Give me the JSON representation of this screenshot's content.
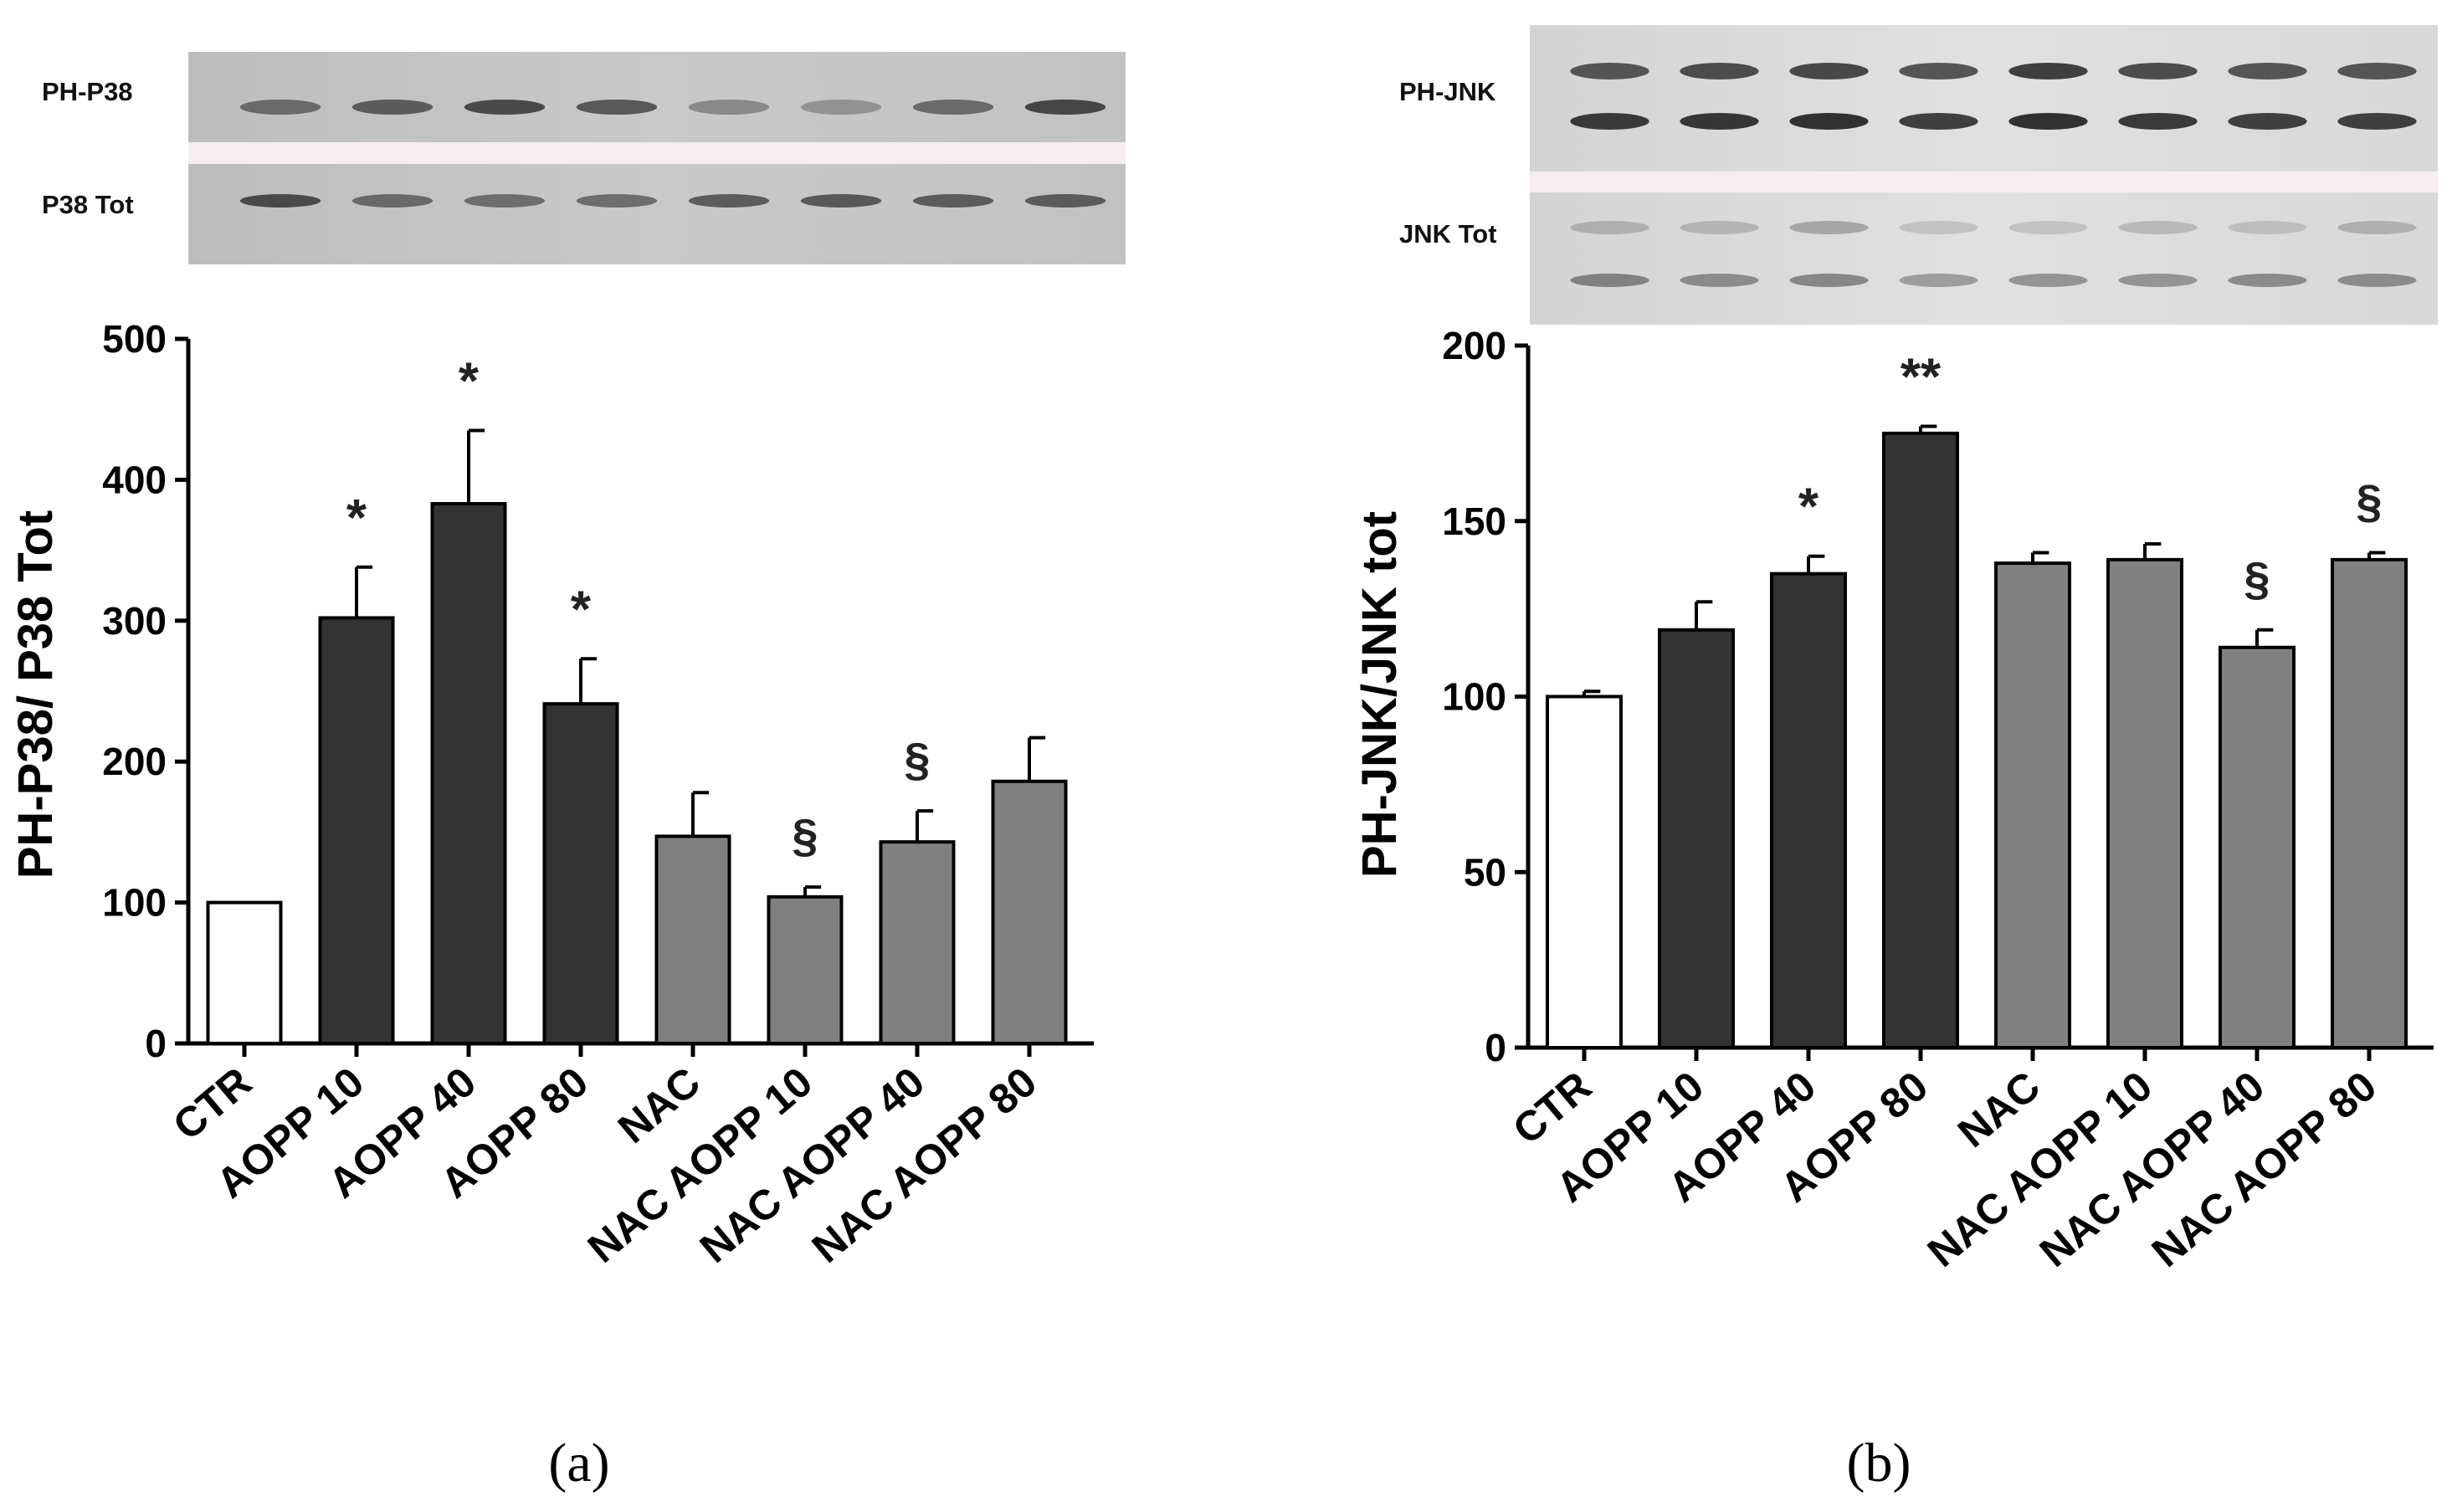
{
  "figure": {
    "panel_a_label": "(a)",
    "panel_b_label": "(b)",
    "blot_a": {
      "top_label": "PH-P38",
      "bottom_label": "P38 Tot"
    },
    "blot_b": {
      "top_label": "PH-JNK",
      "bottom_label": "JNK Tot"
    }
  },
  "colors": {
    "ctr": "#ffffff",
    "aopp": "#333333",
    "nac": "#808080",
    "outline": "#000000"
  },
  "chart_data": [
    {
      "id": "a",
      "type": "bar",
      "ylabel": "PH-P38/ P38 Tot",
      "xlabel": "",
      "ylim": [
        0,
        500
      ],
      "yticks": [
        0,
        100,
        200,
        300,
        400,
        500
      ],
      "categories": [
        "CTR",
        "AOPP 10",
        "AOPP 40",
        "AOPP 80",
        "NAC",
        "NAC AOPP 10",
        "NAC AOPP 40",
        "NAC AOPP 80"
      ],
      "values": [
        100,
        302,
        383,
        241,
        147,
        104,
        143,
        186
      ],
      "errors": [
        0,
        36,
        52,
        32,
        31,
        7,
        22,
        31
      ],
      "groups": [
        "ctr",
        "aopp",
        "aopp",
        "aopp",
        "nac",
        "nac",
        "nac",
        "nac"
      ],
      "annotations": [
        "",
        "*",
        "*",
        "*",
        "",
        "§",
        "§",
        ""
      ],
      "grid": false,
      "legend": "none"
    },
    {
      "id": "b",
      "type": "bar",
      "ylabel": "PH-JNK/JNK tot",
      "xlabel": "",
      "ylim": [
        0,
        200
      ],
      "yticks": [
        0,
        50,
        100,
        150,
        200
      ],
      "categories": [
        "CTR",
        "AOPP 10",
        "AOPP 40",
        "AOPP 80",
        "NAC",
        "NAC AOPP 10",
        "NAC AOPP 40",
        "NAC AOPP 80"
      ],
      "values": [
        100,
        119,
        135,
        175,
        138,
        139,
        114,
        139
      ],
      "errors": [
        1.5,
        8,
        5,
        2,
        3,
        4.5,
        5,
        2
      ],
      "groups": [
        "ctr",
        "aopp",
        "aopp",
        "aopp",
        "nac",
        "nac",
        "nac",
        "nac"
      ],
      "annotations": [
        "",
        "",
        "*",
        "**",
        "",
        "",
        "§",
        "§"
      ],
      "grid": false,
      "legend": "none"
    }
  ]
}
